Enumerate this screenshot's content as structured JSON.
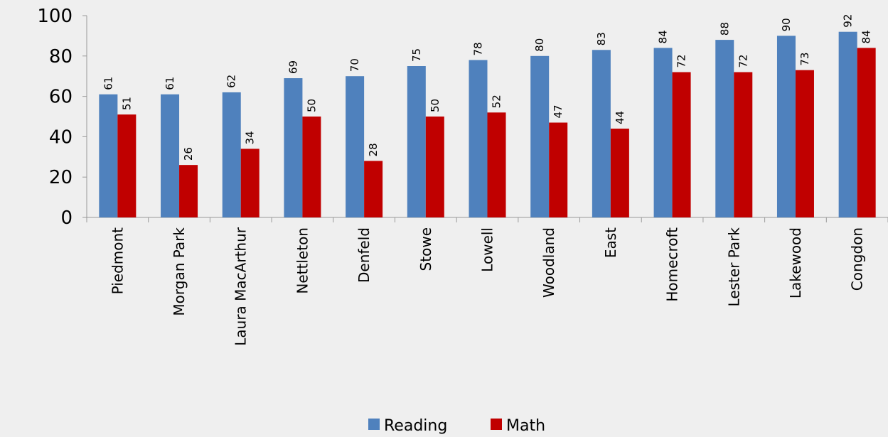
{
  "chart_data": {
    "type": "bar",
    "categories": [
      "Piedmont",
      "Morgan Park",
      "Laura MacArthur",
      "Nettleton",
      "Denfeld",
      "Stowe",
      "Lowell",
      "Woodland",
      "East",
      "Homecroft",
      "Lester Park",
      "Lakewood",
      "Congdon"
    ],
    "series": [
      {
        "name": "Reading",
        "color": "#4f81bd",
        "values": [
          61,
          61,
          62,
          69,
          70,
          75,
          78,
          80,
          83,
          84,
          88,
          90,
          92
        ]
      },
      {
        "name": "Math",
        "color": "#c00000",
        "values": [
          51,
          26,
          34,
          50,
          28,
          50,
          52,
          47,
          44,
          72,
          72,
          73,
          84
        ]
      }
    ],
    "ylim": [
      0,
      100
    ],
    "yticks": [
      0,
      20,
      40,
      60,
      80,
      100
    ],
    "grid": false,
    "legend": "bottom"
  }
}
